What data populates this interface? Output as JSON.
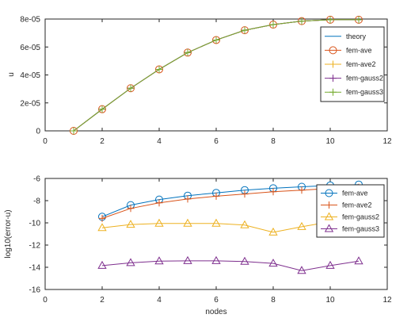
{
  "chart_data": [
    {
      "type": "line",
      "title": "",
      "xlabel": "",
      "ylabel": "u",
      "xlim": [
        0,
        12
      ],
      "ylim": [
        0,
        8e-05
      ],
      "xticks": [
        0,
        2,
        4,
        6,
        8,
        10,
        12
      ],
      "xtick_labels": [
        "0",
        "2",
        "4",
        "6",
        "8",
        "10",
        "12"
      ],
      "yticks": [
        0,
        2e-05,
        4e-05,
        6e-05,
        8e-05
      ],
      "ytick_labels": [
        "0",
        "2e-05",
        "4e-05",
        "6e-05",
        "8e-05"
      ],
      "legend_position": "right",
      "x": [
        1,
        2,
        3,
        4,
        5,
        6,
        7,
        8,
        9,
        10,
        11
      ],
      "series": [
        {
          "name": "theory",
          "color": "#0072bd",
          "marker": "none",
          "values": [
            0,
            1.55e-05,
            3.05e-05,
            4.4e-05,
            5.6e-05,
            6.5e-05,
            7.2e-05,
            7.6e-05,
            7.85e-05,
            7.95e-05,
            7.95e-05
          ]
        },
        {
          "name": "fem-ave",
          "color": "#d95319",
          "marker": "circle",
          "values": [
            0,
            1.55e-05,
            3.05e-05,
            4.4e-05,
            5.6e-05,
            6.5e-05,
            7.2e-05,
            7.6e-05,
            7.85e-05,
            7.95e-05,
            7.95e-05
          ]
        },
        {
          "name": "fem-ave2",
          "color": "#edb120",
          "marker": "plus",
          "values": [
            0,
            1.55e-05,
            3.05e-05,
            4.4e-05,
            5.6e-05,
            6.5e-05,
            7.2e-05,
            7.6e-05,
            7.85e-05,
            7.95e-05,
            7.95e-05
          ]
        },
        {
          "name": "fem-gauss2",
          "color": "#7e2f8e",
          "marker": "plus",
          "values": [
            0,
            1.55e-05,
            3.05e-05,
            4.4e-05,
            5.6e-05,
            6.5e-05,
            7.2e-05,
            7.6e-05,
            7.85e-05,
            7.95e-05,
            7.95e-05
          ]
        },
        {
          "name": "fem-gauss3",
          "color": "#77ac30",
          "marker": "plus",
          "values": [
            0,
            1.55e-05,
            3.05e-05,
            4.4e-05,
            5.6e-05,
            6.5e-05,
            7.2e-05,
            7.6e-05,
            7.85e-05,
            7.95e-05,
            7.95e-05
          ]
        }
      ]
    },
    {
      "type": "line",
      "title": "",
      "xlabel": "nodes",
      "ylabel": "log10(error-u)",
      "xlim": [
        0,
        12
      ],
      "ylim": [
        -16,
        -6
      ],
      "xticks": [
        0,
        2,
        4,
        6,
        8,
        10,
        12
      ],
      "xtick_labels": [
        "0",
        "2",
        "4",
        "6",
        "8",
        "10",
        "12"
      ],
      "yticks": [
        -16,
        -14,
        -12,
        -10,
        -8,
        -6
      ],
      "ytick_labels": [
        "-16",
        "-14",
        "-12",
        "-10",
        "-8",
        "-6"
      ],
      "legend_position": "right",
      "x": [
        2,
        3,
        4,
        5,
        6,
        7,
        8,
        9,
        10,
        11
      ],
      "series": [
        {
          "name": "fem-ave",
          "color": "#0072bd",
          "marker": "circle",
          "values": [
            -9.45,
            -8.4,
            -7.9,
            -7.55,
            -7.3,
            -7.05,
            -6.88,
            -6.75,
            -6.63,
            -6.55
          ]
        },
        {
          "name": "fem-ave2",
          "color": "#d95319",
          "marker": "plus",
          "values": [
            -9.6,
            -8.7,
            -8.2,
            -7.85,
            -7.6,
            -7.4,
            -7.2,
            -7.05,
            -6.9,
            -6.8
          ]
        },
        {
          "name": "fem-gauss2",
          "color": "#edb120",
          "marker": "triangle",
          "values": [
            -10.45,
            -10.15,
            -10.05,
            -10.05,
            -10.05,
            -10.2,
            -10.85,
            -10.35,
            -9.9,
            -9.6
          ]
        },
        {
          "name": "fem-gauss3",
          "color": "#7e2f8e",
          "marker": "triangle",
          "values": [
            -13.85,
            -13.6,
            -13.45,
            -13.42,
            -13.42,
            -13.48,
            -13.65,
            -14.3,
            -13.85,
            -13.45
          ]
        }
      ]
    }
  ]
}
